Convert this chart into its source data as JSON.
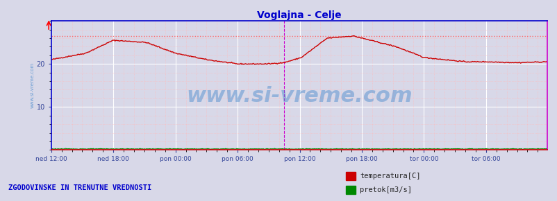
{
  "title": "Voglajna - Celje",
  "title_color": "#0000cc",
  "title_fontsize": 10,
  "bg_color": "#d8d8e8",
  "plot_bg_color": "#d8d8e8",
  "grid_color_major": "#ffffff",
  "grid_color_minor": "#ffbbbb",
  "xlabel": "",
  "ylabel": "",
  "ylim": [
    0,
    30
  ],
  "yticks": [
    10,
    20
  ],
  "x_labels": [
    "ned 12:00",
    "ned 18:00",
    "pon 00:00",
    "pon 06:00",
    "pon 12:00",
    "pon 18:00",
    "tor 00:00",
    "tor 06:00"
  ],
  "x_tick_positions": [
    0,
    72,
    144,
    216,
    288,
    360,
    432,
    504
  ],
  "n_points": 576,
  "temp_max_line": 26.5,
  "temp_line_color": "#cc0000",
  "temp_max_line_color": "#ff6666",
  "flow_line_color": "#008800",
  "watermark": "www.si-vreme.com",
  "watermark_color": "#4488cc",
  "watermark_alpha": 0.45,
  "watermark_fontsize": 22,
  "left_label": "www.si-vreme.com",
  "left_label_color": "#4488cc",
  "bottom_left_label": "ZGODOVINSKE IN TRENUTNE VREDNOSTI",
  "bottom_left_label_color": "#0000cc",
  "legend_items": [
    "temperatura[C]",
    "pretok[m3/s]"
  ],
  "legend_colors": [
    "#cc0000",
    "#008800"
  ],
  "spine_color_left": "#0000cc",
  "spine_color_top": "#0000cc",
  "spine_color_right": "#cc00cc",
  "spine_color_bottom": "#cc0000",
  "vline_color": "#cc00cc",
  "vline_pos": 270,
  "right_border_color": "#cc00cc"
}
